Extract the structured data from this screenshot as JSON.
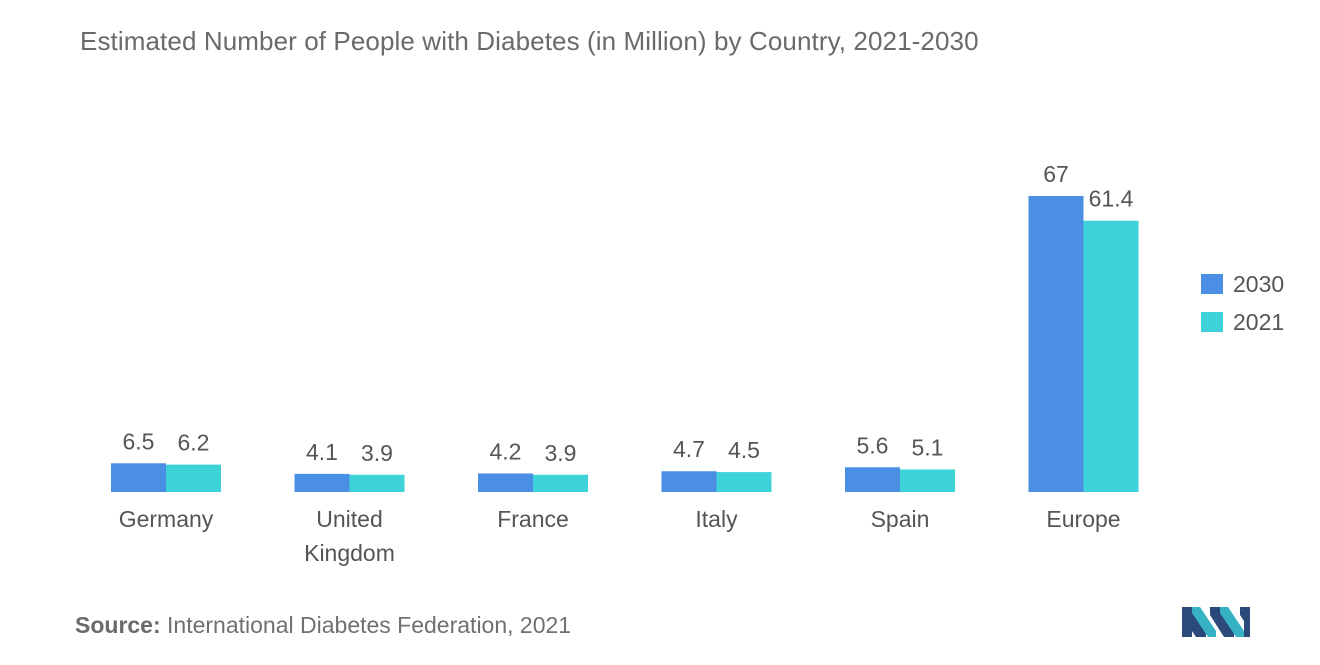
{
  "chart_data": {
    "type": "bar",
    "title": "Estimated Number of People with Diabetes (in Million) by Country, 2021-2030",
    "categories": [
      "Germany",
      "United Kingdom",
      "France",
      "Italy",
      "Spain",
      "Europe"
    ],
    "category_lines": [
      [
        "Germany"
      ],
      [
        "United",
        "Kingdom"
      ],
      [
        "France"
      ],
      [
        "Italy"
      ],
      [
        "Spain"
      ],
      [
        "Europe"
      ]
    ],
    "series": [
      {
        "name": "2030",
        "values": [
          6.5,
          4.1,
          4.2,
          4.7,
          5.6,
          67
        ],
        "labels": [
          "6.5",
          "4.1",
          "4.2",
          "4.7",
          "5.6",
          "67"
        ],
        "color": "#4a8fe3"
      },
      {
        "name": "2021",
        "values": [
          6.2,
          3.9,
          3.9,
          4.5,
          5.1,
          61.4
        ],
        "labels": [
          "6.2",
          "3.9",
          "3.9",
          "4.5",
          "5.1",
          "61.4"
        ],
        "color": "#3ed3d9"
      }
    ],
    "ylim": [
      0,
      67
    ],
    "grid": false,
    "legend_position": "right"
  },
  "source": {
    "label": "Source:",
    "text": "International Diabetes Federation, 2021"
  },
  "logo_icon": "mordor-intelligence-logo-icon"
}
